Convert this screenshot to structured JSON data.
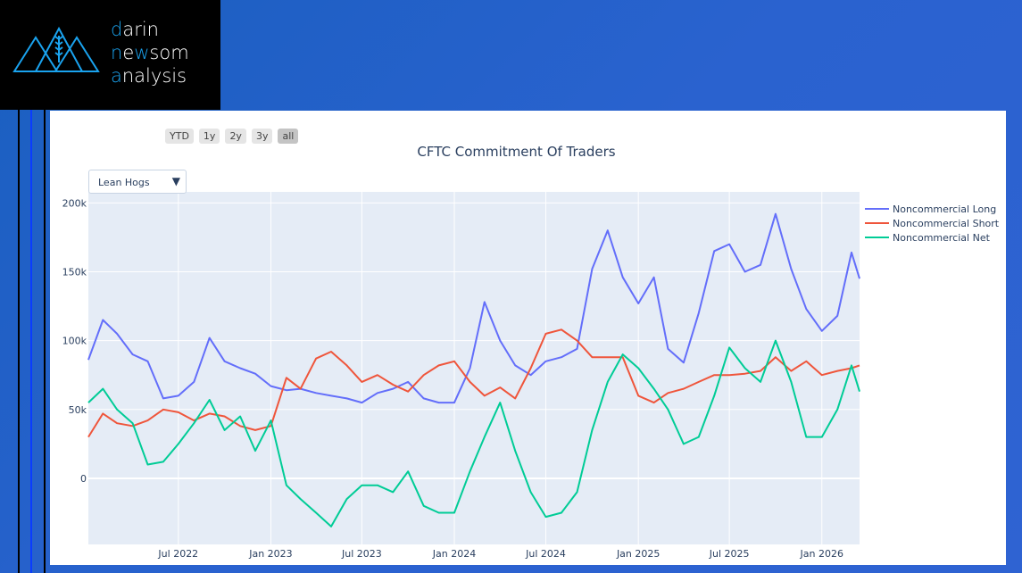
{
  "brand": {
    "line1_accent": "d",
    "line1_rest": "arin",
    "line2_accent": "n",
    "line2_mid": "e",
    "line2_w": "w",
    "line2_rest": "som",
    "line3_accent": "a",
    "line3_rest": "nalysis"
  },
  "range_buttons": [
    "YTD",
    "1y",
    "2y",
    "3y",
    "all"
  ],
  "active_range": "all",
  "dropdown": {
    "selected": "Lean Hogs",
    "arrow": "▼"
  },
  "colors": {
    "long": "#636efa",
    "short": "#ef553b",
    "net": "#00cc96",
    "plot_bg": "#e5ecf6"
  },
  "chart_data": {
    "type": "line",
    "title": "CFTC Commitment Of Traders",
    "xlabel": "",
    "ylabel": "",
    "ylim": [
      -48000,
      208000
    ],
    "xlim": [
      "2022-01-03",
      "2026-03-17"
    ],
    "yticks": [
      {
        "v": 0,
        "label": "0"
      },
      {
        "v": 50000,
        "label": "50k"
      },
      {
        "v": 100000,
        "label": "100k"
      },
      {
        "v": 150000,
        "label": "150k"
      },
      {
        "v": 200000,
        "label": "200k"
      }
    ],
    "xticks": [
      {
        "d": "2022-07-01",
        "label": "Jul 2022"
      },
      {
        "d": "2023-01-01",
        "label": "Jan 2023"
      },
      {
        "d": "2023-07-01",
        "label": "Jul 2023"
      },
      {
        "d": "2024-01-01",
        "label": "Jan 2024"
      },
      {
        "d": "2024-07-01",
        "label": "Jul 2024"
      },
      {
        "d": "2025-01-01",
        "label": "Jan 2025"
      },
      {
        "d": "2025-07-01",
        "label": "Jul 2025"
      },
      {
        "d": "2026-01-01",
        "label": "Jan 2026"
      }
    ],
    "legend_position": "right",
    "x": [
      "2022-01-03",
      "2022-02-01",
      "2022-03-01",
      "2022-04-01",
      "2022-05-01",
      "2022-06-01",
      "2022-07-01",
      "2022-08-01",
      "2022-09-01",
      "2022-10-01",
      "2022-11-01",
      "2022-12-01",
      "2023-01-01",
      "2023-02-01",
      "2023-03-01",
      "2023-04-01",
      "2023-05-01",
      "2023-06-01",
      "2023-07-01",
      "2023-08-01",
      "2023-09-01",
      "2023-10-01",
      "2023-11-01",
      "2023-12-01",
      "2024-01-01",
      "2024-02-01",
      "2024-03-01",
      "2024-04-01",
      "2024-05-01",
      "2024-06-01",
      "2024-07-01",
      "2024-08-01",
      "2024-09-01",
      "2024-10-01",
      "2024-11-01",
      "2024-12-01",
      "2025-01-01",
      "2025-02-01",
      "2025-03-01",
      "2025-04-01",
      "2025-05-01",
      "2025-06-01",
      "2025-07-01",
      "2025-08-01",
      "2025-09-01",
      "2025-10-01",
      "2025-11-01",
      "2025-12-01",
      "2026-01-01",
      "2026-02-01",
      "2026-03-01",
      "2026-03-17"
    ],
    "series": [
      {
        "name": "Noncommercial Long",
        "values": [
          86000,
          115000,
          105000,
          90000,
          85000,
          58000,
          60000,
          70000,
          102000,
          85000,
          80000,
          76000,
          67000,
          64000,
          65000,
          62000,
          60000,
          58000,
          55000,
          62000,
          65000,
          70000,
          58000,
          55000,
          55000,
          80000,
          128000,
          100000,
          82000,
          75000,
          85000,
          88000,
          94000,
          152000,
          180000,
          146000,
          127000,
          146000,
          94000,
          84000,
          120000,
          165000,
          170000,
          150000,
          155000,
          192000,
          152000,
          123000,
          107000,
          118000,
          164000,
          145000
        ]
      },
      {
        "name": "Noncommercial Short",
        "values": [
          30000,
          47000,
          40000,
          38000,
          42000,
          50000,
          48000,
          42000,
          47000,
          45000,
          38000,
          35000,
          38000,
          73000,
          65000,
          87000,
          92000,
          82000,
          70000,
          75000,
          68000,
          63000,
          75000,
          82000,
          85000,
          70000,
          60000,
          66000,
          58000,
          80000,
          105000,
          108000,
          100000,
          88000,
          88000,
          88000,
          60000,
          55000,
          62000,
          65000,
          70000,
          75000,
          75000,
          76000,
          78000,
          88000,
          78000,
          85000,
          75000,
          78000,
          80000,
          82000
        ]
      },
      {
        "name": "Noncommercial Net",
        "values": [
          55000,
          65000,
          50000,
          40000,
          10000,
          12000,
          25000,
          40000,
          57000,
          35000,
          45000,
          20000,
          42000,
          -5000,
          -15000,
          -25000,
          -35000,
          -15000,
          -5000,
          -5000,
          -10000,
          5000,
          -20000,
          -25000,
          -25000,
          5000,
          30000,
          55000,
          20000,
          -10000,
          -28000,
          -25000,
          -10000,
          35000,
          70000,
          90000,
          80000,
          65000,
          50000,
          25000,
          30000,
          60000,
          95000,
          80000,
          70000,
          100000,
          70000,
          30000,
          30000,
          50000,
          82000,
          63000
        ]
      }
    ]
  }
}
